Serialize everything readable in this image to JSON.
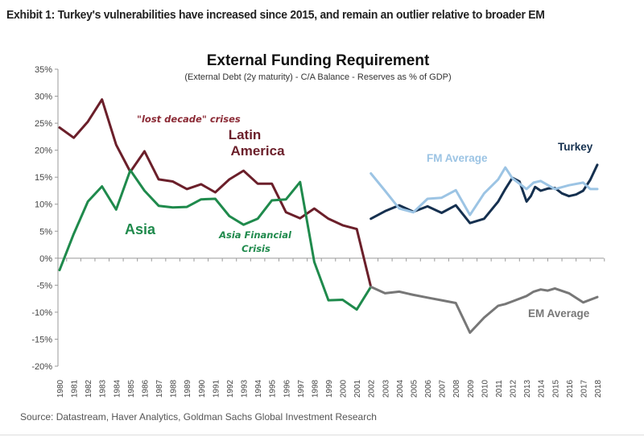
{
  "exhibit_title": "Exhibit 1: Turkey's vulnerabilities have increased since 2015, and remain an outlier relative to broader EM",
  "source": "Source: Datastream, Haver Analytics, Goldman Sachs Global Investment Research",
  "chart_data": {
    "type": "line",
    "title": "External Funding Requirement",
    "subtitle": "(External Debt (2y maturity) - C/A Balance - Reserves  as % of GDP)",
    "xlabel": "",
    "ylabel": "",
    "ylim": [
      -20,
      35
    ],
    "xlim": [
      1980,
      2018
    ],
    "yticks": [
      "35%",
      "30%",
      "25%",
      "20%",
      "15%",
      "10%",
      "5%",
      "0%",
      "-5%",
      "-10%",
      "-15%",
      "-20%"
    ],
    "ytick_values": [
      35,
      30,
      25,
      20,
      15,
      10,
      5,
      0,
      -5,
      -10,
      -15,
      -20
    ],
    "xticks": [
      "1980",
      "1981",
      "1982",
      "1983",
      "1984",
      "1985",
      "1986",
      "1987",
      "1988",
      "1989",
      "1990",
      "1991",
      "1992",
      "1993",
      "1994",
      "1995",
      "1996",
      "1997",
      "1998",
      "1999",
      "2000",
      "2001",
      "2002",
      "2003",
      "2004",
      "2005",
      "2006",
      "2007",
      "2008",
      "2009",
      "2010",
      "2011",
      "2012",
      "2013",
      "2014",
      "2015",
      "2016",
      "2017",
      "2018"
    ],
    "grid": false,
    "series": [
      {
        "name": "Latin America",
        "color": "#6b1f2a",
        "x": [
          1980,
          1981,
          1982,
          1983,
          1984,
          1985,
          1986,
          1987,
          1988,
          1989,
          1990,
          1991,
          1992,
          1993,
          1994,
          1995,
          1996,
          1997,
          1998,
          1999,
          2000,
          2001,
          2002
        ],
        "values": [
          24.2,
          22.3,
          25.3,
          29.4,
          21.0,
          16.0,
          19.8,
          14.6,
          14.2,
          12.8,
          13.7,
          12.2,
          14.6,
          16.2,
          13.8,
          13.8,
          8.5,
          7.4,
          9.2,
          7.3,
          6.1,
          5.4,
          -5.3
        ]
      },
      {
        "name": "Asia",
        "color": "#1f8a4c",
        "x": [
          1980,
          1981,
          1982,
          1983,
          1984,
          1985,
          1986,
          1987,
          1988,
          1989,
          1990,
          1991,
          1992,
          1993,
          1994,
          1995,
          1996,
          1997,
          1998,
          1999,
          2000,
          2001,
          2002
        ],
        "values": [
          -2.2,
          4.5,
          10.5,
          13.3,
          9.0,
          16.3,
          12.5,
          9.7,
          9.4,
          9.5,
          10.9,
          11.0,
          7.8,
          6.2,
          7.3,
          10.7,
          10.9,
          14.1,
          -0.7,
          -7.8,
          -7.7,
          -9.5,
          -5.3
        ]
      },
      {
        "name": "EM Average",
        "color": "#777777",
        "x": [
          2002,
          2003,
          2004,
          2005,
          2006,
          2007,
          2008,
          2009,
          2010,
          2011,
          2011.5,
          2012,
          2013,
          2013.5,
          2014,
          2014.5,
          2015,
          2016,
          2017,
          2018
        ],
        "values": [
          -5.3,
          -6.5,
          -6.2,
          -6.8,
          -7.3,
          -7.8,
          -8.3,
          -13.8,
          -11.0,
          -8.8,
          -8.5,
          -8.0,
          -7.0,
          -6.2,
          -5.8,
          -6.0,
          -5.6,
          -6.5,
          -8.2,
          -7.2
        ]
      },
      {
        "name": "Turkey",
        "color": "#15304f",
        "x": [
          2002,
          2003,
          2004,
          2005,
          2006,
          2007,
          2008,
          2009,
          2010,
          2011,
          2011.5,
          2012,
          2012.5,
          2013,
          2013.3,
          2013.6,
          2014,
          2014.5,
          2015,
          2015.5,
          2016,
          2016.5,
          2017,
          2017.5,
          2018
        ],
        "values": [
          7.3,
          8.7,
          9.8,
          8.6,
          9.6,
          8.4,
          9.8,
          6.5,
          7.3,
          10.5,
          12.8,
          14.9,
          14.2,
          10.5,
          11.5,
          13.2,
          12.5,
          12.9,
          13.0,
          12.0,
          11.5,
          11.8,
          12.5,
          14.5,
          17.3
        ]
      },
      {
        "name": "FM Average",
        "color": "#9cc4e4",
        "x": [
          2002,
          2003,
          2004,
          2005,
          2006,
          2007,
          2008,
          2009,
          2010,
          2011,
          2011.5,
          2012,
          2013,
          2013.5,
          2014,
          2015,
          2016,
          2017,
          2017.5,
          2018
        ],
        "values": [
          15.7,
          12.5,
          9.2,
          8.5,
          11.0,
          11.2,
          12.6,
          8.0,
          12.0,
          14.6,
          16.8,
          14.8,
          12.8,
          14.0,
          14.3,
          12.8,
          13.5,
          14.0,
          12.8,
          12.8
        ]
      }
    ],
    "annotations": [
      {
        "text": "\"lost decade\" crises",
        "color": "#8b2a35",
        "style": "italic"
      },
      {
        "text": "Latin",
        "color": "#6b1f2a"
      },
      {
        "text": "America",
        "color": "#6b1f2a"
      },
      {
        "text": "Asia",
        "color": "#1f8a4c"
      },
      {
        "text": "Asia Financial",
        "color": "#1f8a4c",
        "style": "italic"
      },
      {
        "text": "Crisis",
        "color": "#1f8a4c",
        "style": "italic"
      },
      {
        "text": "FM Average",
        "color": "#9cc4e4"
      },
      {
        "text": "Turkey",
        "color": "#15304f"
      },
      {
        "text": "EM Average",
        "color": "#777777"
      }
    ]
  }
}
